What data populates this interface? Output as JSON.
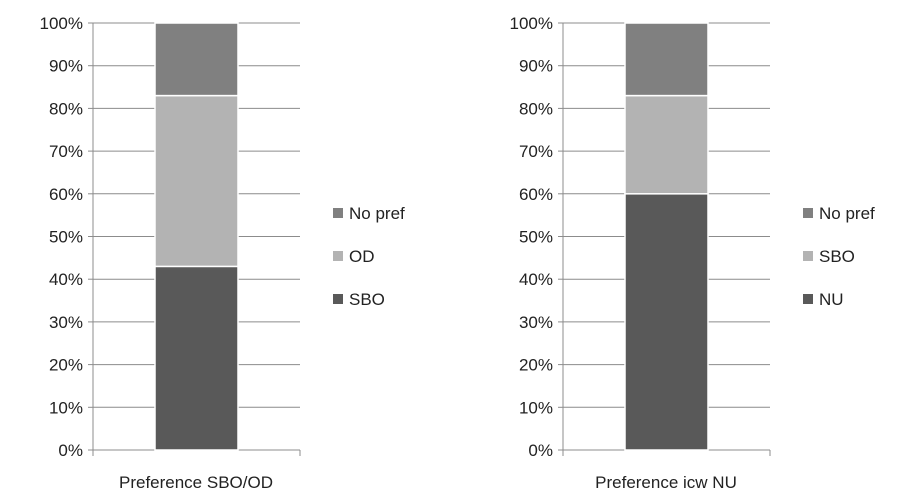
{
  "chart_data": [
    {
      "type": "bar",
      "stacked": true,
      "categories": [
        "Preference SBO/OD"
      ],
      "series": [
        {
          "name": "SBO",
          "values": [
            43
          ],
          "color": "#595959"
        },
        {
          "name": "OD",
          "values": [
            40
          ],
          "color": "#b3b3b3"
        },
        {
          "name": "No pref",
          "values": [
            17
          ],
          "color": "#808080"
        }
      ],
      "ylim": [
        0,
        100
      ],
      "yticks": [
        "0%",
        "10%",
        "20%",
        "30%",
        "40%",
        "50%",
        "60%",
        "70%",
        "80%",
        "90%",
        "100%"
      ],
      "grid": true,
      "legend_position": "right"
    },
    {
      "type": "bar",
      "stacked": true,
      "categories": [
        "Preference icw NU"
      ],
      "series": [
        {
          "name": "NU",
          "values": [
            60
          ],
          "color": "#595959"
        },
        {
          "name": "SBO",
          "values": [
            23
          ],
          "color": "#b3b3b3"
        },
        {
          "name": "No pref",
          "values": [
            17
          ],
          "color": "#808080"
        }
      ],
      "ylim": [
        0,
        100
      ],
      "yticks": [
        "0%",
        "10%",
        "20%",
        "30%",
        "40%",
        "50%",
        "60%",
        "70%",
        "80%",
        "90%",
        "100%"
      ],
      "grid": true,
      "legend_position": "right"
    }
  ]
}
